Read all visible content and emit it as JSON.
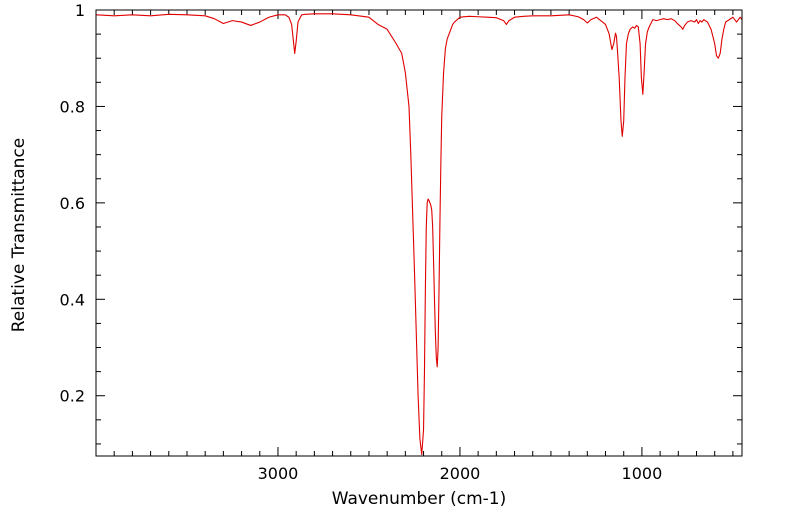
{
  "chart_data": {
    "type": "line",
    "title": "",
    "xlabel": "Wavenumber (cm-1)",
    "ylabel": "Relative Transmittance",
    "xlim": [
      4000,
      450
    ],
    "ylim": [
      0.075,
      1.0
    ],
    "x_reversed": true,
    "grid": false,
    "legend": "none",
    "line_color": "#e00000",
    "x_ticks": [
      3000,
      2000,
      1000
    ],
    "x_tick_labels": [
      "3000",
      "2000",
      "1000"
    ],
    "y_ticks": [
      0.2,
      0.4,
      0.6,
      0.8,
      1.0
    ],
    "y_tick_labels": [
      "0.2",
      "0.4",
      "0.6",
      "0.8",
      "1"
    ],
    "series": [
      {
        "x": [
          4000,
          3900,
          3800,
          3700,
          3600,
          3500,
          3400,
          3350,
          3300,
          3250,
          3200,
          3150,
          3100,
          3050,
          3000,
          2960,
          2940,
          2925,
          2915,
          2908,
          2900,
          2890,
          2870,
          2850,
          2800,
          2700,
          2600,
          2500,
          2450,
          2400,
          2350,
          2320,
          2300,
          2280,
          2270,
          2260,
          2250,
          2240,
          2230,
          2220,
          2210,
          2200,
          2195,
          2190,
          2185,
          2180,
          2175,
          2170,
          2165,
          2160,
          2155,
          2150,
          2145,
          2140,
          2135,
          2130,
          2125,
          2120,
          2115,
          2110,
          2105,
          2100,
          2090,
          2080,
          2070,
          2060,
          2050,
          2040,
          2030,
          2000,
          1950,
          1900,
          1850,
          1800,
          1760,
          1745,
          1730,
          1700,
          1650,
          1600,
          1500,
          1400,
          1350,
          1320,
          1300,
          1280,
          1250,
          1200,
          1180,
          1165,
          1155,
          1145,
          1140,
          1135,
          1125,
          1115,
          1108,
          1100,
          1093,
          1085,
          1075,
          1065,
          1050,
          1040,
          1030,
          1020,
          1010,
          1003,
          995,
          988,
          980,
          970,
          960,
          940,
          920,
          900,
          880,
          860,
          840,
          820,
          800,
          785,
          775,
          765,
          750,
          730,
          710,
          700,
          690,
          680,
          670,
          660,
          640,
          620,
          600,
          590,
          580,
          570,
          560,
          550,
          540,
          520,
          500,
          480,
          460,
          450
        ],
        "y": [
          0.99,
          0.988,
          0.99,
          0.988,
          0.991,
          0.99,
          0.988,
          0.982,
          0.972,
          0.978,
          0.975,
          0.968,
          0.975,
          0.985,
          0.99,
          0.99,
          0.985,
          0.97,
          0.935,
          0.91,
          0.935,
          0.975,
          0.99,
          0.991,
          0.992,
          0.992,
          0.99,
          0.985,
          0.97,
          0.96,
          0.93,
          0.91,
          0.87,
          0.8,
          0.7,
          0.58,
          0.46,
          0.33,
          0.2,
          0.11,
          0.078,
          0.13,
          0.25,
          0.42,
          0.55,
          0.6,
          0.608,
          0.605,
          0.6,
          0.595,
          0.585,
          0.55,
          0.48,
          0.4,
          0.33,
          0.28,
          0.26,
          0.3,
          0.42,
          0.56,
          0.68,
          0.78,
          0.87,
          0.92,
          0.94,
          0.95,
          0.96,
          0.97,
          0.975,
          0.985,
          0.987,
          0.986,
          0.985,
          0.984,
          0.978,
          0.97,
          0.978,
          0.985,
          0.987,
          0.988,
          0.988,
          0.99,
          0.986,
          0.98,
          0.973,
          0.98,
          0.985,
          0.97,
          0.95,
          0.918,
          0.93,
          0.952,
          0.945,
          0.92,
          0.86,
          0.77,
          0.738,
          0.77,
          0.86,
          0.93,
          0.95,
          0.96,
          0.965,
          0.962,
          0.968,
          0.965,
          0.93,
          0.86,
          0.825,
          0.87,
          0.93,
          0.955,
          0.965,
          0.98,
          0.978,
          0.98,
          0.982,
          0.98,
          0.982,
          0.978,
          0.97,
          0.965,
          0.96,
          0.968,
          0.975,
          0.978,
          0.975,
          0.98,
          0.972,
          0.978,
          0.975,
          0.98,
          0.975,
          0.96,
          0.93,
          0.905,
          0.9,
          0.91,
          0.94,
          0.96,
          0.975,
          0.98,
          0.985,
          0.975,
          0.985,
          0.98
        ]
      }
    ]
  }
}
